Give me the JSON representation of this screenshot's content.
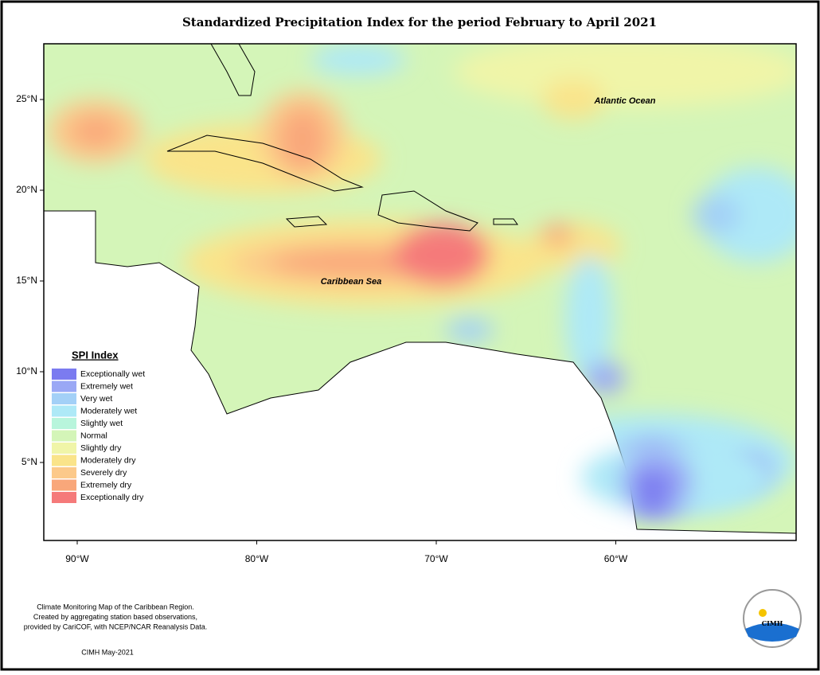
{
  "header": {
    "title": "Standardized Precipitation Index for the period February to April 2021"
  },
  "map": {
    "lat_ticks": [
      {
        "value": 25,
        "label": "25°N"
      },
      {
        "value": 20,
        "label": "20°N"
      },
      {
        "value": 15,
        "label": "15°N"
      },
      {
        "value": 10,
        "label": "10°N"
      },
      {
        "value": 5,
        "label": "5°N"
      }
    ],
    "lon_ticks": [
      {
        "value": -90,
        "label": "90°W"
      },
      {
        "value": -80,
        "label": "80°W"
      },
      {
        "value": -70,
        "label": "70°W"
      },
      {
        "value": -60,
        "label": "60°W"
      }
    ],
    "labels": [
      "Atlantic Ocean",
      "Caribbean Sea"
    ]
  },
  "legend": {
    "title": "SPI Index",
    "items": [
      {
        "label": "Exceptionally wet",
        "color": "#7b7bf0"
      },
      {
        "label": "Extremely wet",
        "color": "#9aa8f5"
      },
      {
        "label": "Very wet",
        "color": "#a3d0f7"
      },
      {
        "label": "Moderately wet",
        "color": "#aee9f7"
      },
      {
        "label": "Slightly wet",
        "color": "#b8f5dc"
      },
      {
        "label": "Normal",
        "color": "#d4f5b8"
      },
      {
        "label": "Slightly dry",
        "color": "#f0f5a8"
      },
      {
        "label": "Moderately dry",
        "color": "#fae48a"
      },
      {
        "label": "Severely dry",
        "color": "#fcc98a"
      },
      {
        "label": "Extremely dry",
        "color": "#f9a77a"
      },
      {
        "label": "Exceptionally dry",
        "color": "#f57a7a"
      }
    ]
  },
  "footer": {
    "notes": [
      "Climate Monitoring Map of the Caribbean Region.",
      "Created by aggregating station based observations,",
      "provided by CariCOF, with NCEP/NCAR Reanalysis Data."
    ],
    "date": "CIMH May-2021",
    "logo": "CIMH"
  }
}
